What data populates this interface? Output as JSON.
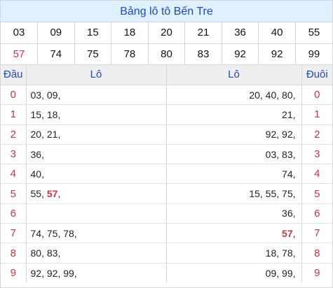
{
  "title": "Bảng lô tô Bến Tre",
  "numbers_row1": [
    "03",
    "09",
    "15",
    "18",
    "20",
    "21",
    "36",
    "40",
    "55"
  ],
  "numbers_row2": [
    "57",
    "74",
    "75",
    "78",
    "80",
    "83",
    "92",
    "92",
    "99"
  ],
  "special_number": "57",
  "headers": {
    "dau": "Đầu",
    "lo_left": "Lô",
    "lo_right": "Lô",
    "duoi": "Đuôi"
  },
  "rows": [
    {
      "dau": "0",
      "left": [
        "03",
        "09"
      ],
      "right": [
        "20",
        "40",
        "80"
      ],
      "duoi": "0"
    },
    {
      "dau": "1",
      "left": [
        "15",
        "18"
      ],
      "right": [
        "21"
      ],
      "duoi": "1"
    },
    {
      "dau": "2",
      "left": [
        "20",
        "21"
      ],
      "right": [
        "92",
        "92"
      ],
      "duoi": "2"
    },
    {
      "dau": "3",
      "left": [
        "36"
      ],
      "right": [
        "03",
        "83"
      ],
      "duoi": "3"
    },
    {
      "dau": "4",
      "left": [
        "40"
      ],
      "right": [
        "74"
      ],
      "duoi": "4"
    },
    {
      "dau": "5",
      "left": [
        "55",
        "57"
      ],
      "right": [
        "15",
        "55",
        "75"
      ],
      "duoi": "5"
    },
    {
      "dau": "6",
      "left": [],
      "right": [
        "36"
      ],
      "duoi": "6"
    },
    {
      "dau": "7",
      "left": [
        "74",
        "75",
        "78"
      ],
      "right": [
        "57"
      ],
      "duoi": "7"
    },
    {
      "dau": "8",
      "left": [
        "80",
        "83"
      ],
      "right": [
        "18",
        "78"
      ],
      "duoi": "8"
    },
    {
      "dau": "9",
      "left": [
        "92",
        "92",
        "99"
      ],
      "right": [
        "09",
        "99"
      ],
      "duoi": "9"
    }
  ],
  "colors": {
    "title_bg": "#dff0ff",
    "accent_blue": "#1b49d0",
    "special_red": "#d9303e",
    "header_bg": "#efefef"
  }
}
